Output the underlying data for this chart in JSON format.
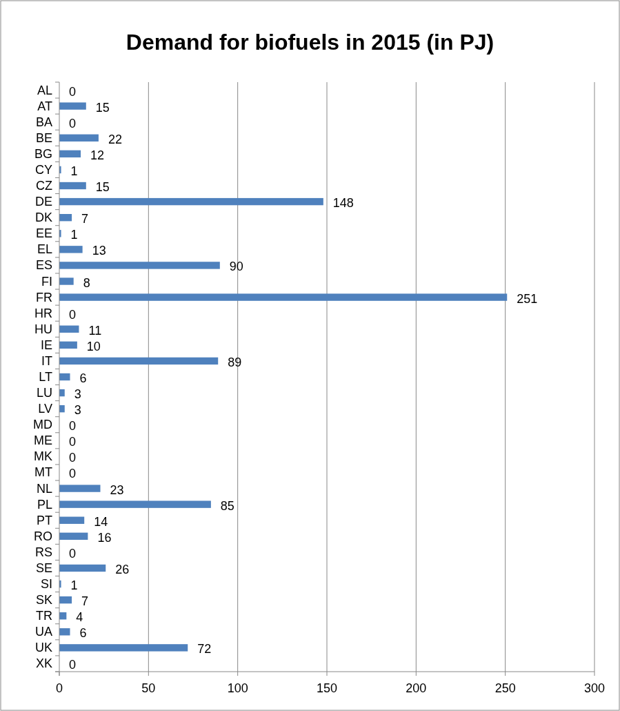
{
  "chart_data": {
    "type": "bar",
    "orientation": "horizontal",
    "title": "Demand for biofuels in 2015 (in PJ)",
    "categories": [
      "AL",
      "AT",
      "BA",
      "BE",
      "BG",
      "CY",
      "CZ",
      "DE",
      "DK",
      "EE",
      "EL",
      "ES",
      "FI",
      "FR",
      "HR",
      "HU",
      "IE",
      "IT",
      "LT",
      "LU",
      "LV",
      "MD",
      "ME",
      "MK",
      "MT",
      "NL",
      "PL",
      "PT",
      "RO",
      "RS",
      "SE",
      "SI",
      "SK",
      "TR",
      "UA",
      "UK",
      "XK"
    ],
    "values": [
      0,
      15,
      0,
      22,
      12,
      1,
      15,
      148,
      7,
      1,
      13,
      90,
      8,
      251,
      0,
      11,
      10,
      89,
      6,
      3,
      3,
      0,
      0,
      0,
      0,
      23,
      85,
      14,
      16,
      0,
      26,
      1,
      7,
      4,
      6,
      72,
      0
    ],
    "color": "#4f81bd",
    "xlim": [
      0,
      300
    ],
    "xticks": [
      0,
      50,
      100,
      150,
      200,
      250,
      300
    ],
    "grid": "x",
    "data_labels": true
  }
}
